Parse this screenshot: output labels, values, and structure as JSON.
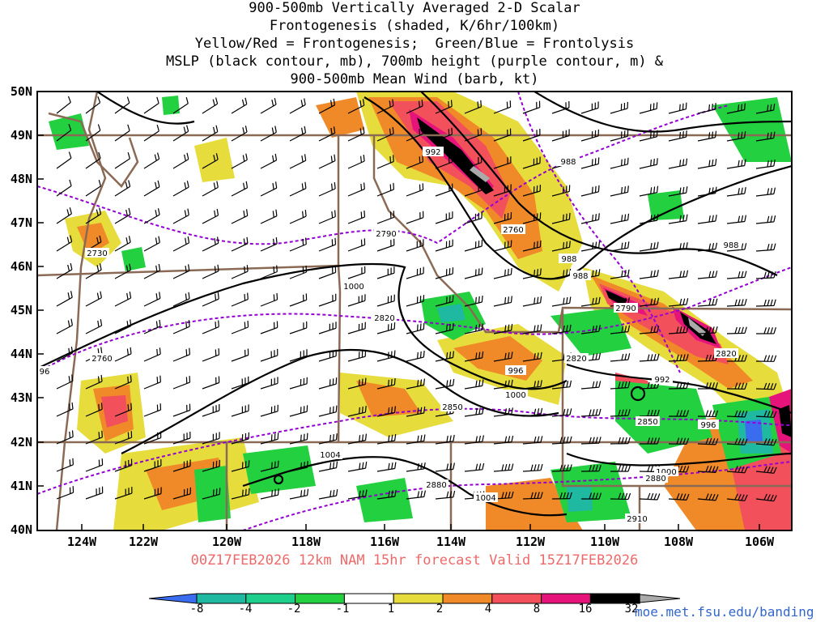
{
  "title_lines": [
    "900-500mb Vertically Averaged 2-D Scalar",
    "Frontogenesis (shaded, K/6hr/100km)",
    "Yellow/Red = Frontogenesis;  Green/Blue = Frontolysis",
    "MSLP (black contour, mb), 700mb height (purple contour, m) &",
    "900-500mb Mean Wind (barb, kt)"
  ],
  "lat_labels": [
    "50N",
    "49N",
    "48N",
    "47N",
    "46N",
    "45N",
    "44N",
    "43N",
    "42N",
    "41N",
    "40N"
  ],
  "lon_labels": [
    "124W",
    "122W",
    "120W",
    "118W",
    "116W",
    "114W",
    "112W",
    "110W",
    "108W",
    "106W"
  ],
  "valid_line": "00Z17FEB2026 12km NAM 15hr forecast Valid 15Z17FEB2026",
  "colorbar": {
    "labels": [
      "-8",
      "-4",
      "-2",
      "-1",
      "1",
      "2",
      "4",
      "8",
      "16",
      "32"
    ],
    "colors": [
      "#3a6cf0",
      "#1fb8a0",
      "#1ecf8c",
      "#22d040",
      "#ffffff",
      "#e6dc3c",
      "#f08a28",
      "#f2505a",
      "#e6147a",
      "#000000",
      "#aaaaaa"
    ]
  },
  "credit": "moe.met.fsu.edu/banding",
  "contour_labels": {
    "mslp": [
      "992",
      "988",
      "988",
      "988",
      "988",
      "1000",
      "996",
      "1000",
      "992",
      "996",
      "1000",
      "1004",
      "1004",
      "96"
    ],
    "height": [
      "2730",
      "2790",
      "2760",
      "2790",
      "2820",
      "2820",
      "2820",
      "2760",
      "2850",
      "2850",
      "2880",
      "2880",
      "2910"
    ]
  },
  "colors": {
    "mslp": "#000000",
    "height": "#9400d3",
    "borders": "#8b6a55",
    "frontogenesis_weak": "#e6dc3c",
    "frontogenesis_mid": "#f08a28",
    "frontogenesis_strong": "#f2505a",
    "frontogenesis_max": "#e6147a",
    "frontolysis": "#22d040"
  }
}
